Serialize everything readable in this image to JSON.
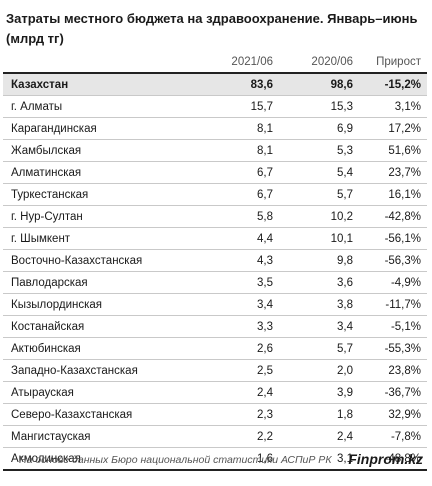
{
  "title": "Затраты местного бюджета на здравоохранение. Январь–июнь (млрд тг)",
  "table": {
    "headers": [
      "",
      "2021/06",
      "2020/06",
      "Прирост"
    ],
    "total": {
      "name": "Казахстан",
      "v2021": "83,6",
      "v2020": "98,6",
      "growth": "-15,2%"
    },
    "rows": [
      {
        "name": "г. Алматы",
        "v2021": "15,7",
        "v2020": "15,3",
        "growth": "3,1%"
      },
      {
        "name": "Карагандинская",
        "v2021": "8,1",
        "v2020": "6,9",
        "growth": "17,2%"
      },
      {
        "name": "Жамбылская",
        "v2021": "8,1",
        "v2020": "5,3",
        "growth": "51,6%"
      },
      {
        "name": "Алматинская",
        "v2021": "6,7",
        "v2020": "5,4",
        "growth": "23,7%"
      },
      {
        "name": "Туркестанская",
        "v2021": "6,7",
        "v2020": "5,7",
        "growth": "16,1%"
      },
      {
        "name": "г. Нур-Султан",
        "v2021": "5,8",
        "v2020": "10,2",
        "growth": "-42,8%"
      },
      {
        "name": "г. Шымкент",
        "v2021": "4,4",
        "v2020": "10,1",
        "growth": "-56,1%"
      },
      {
        "name": "Восточно-Казахстанская",
        "v2021": "4,3",
        "v2020": "9,8",
        "growth": "-56,3%"
      },
      {
        "name": "Павлодарская",
        "v2021": "3,5",
        "v2020": "3,6",
        "growth": "-4,9%"
      },
      {
        "name": "Кызылординская",
        "v2021": "3,4",
        "v2020": "3,8",
        "growth": "-11,7%"
      },
      {
        "name": "Костанайская",
        "v2021": "3,3",
        "v2020": "3,4",
        "growth": "-5,1%"
      },
      {
        "name": "Актюбинская",
        "v2021": "2,6",
        "v2020": "5,7",
        "growth": "-55,3%"
      },
      {
        "name": "Западно-Казахстанская",
        "v2021": "2,5",
        "v2020": "2,0",
        "growth": "23,8%"
      },
      {
        "name": "Атырауская",
        "v2021": "2,4",
        "v2020": "3,9",
        "growth": "-36,7%"
      },
      {
        "name": "Северо-Казахстанская",
        "v2021": "2,3",
        "v2020": "1,8",
        "growth": "32,9%"
      },
      {
        "name": "Мангистауская",
        "v2021": "2,2",
        "v2020": "2,4",
        "growth": "-7,8%"
      },
      {
        "name": "Акмолинская",
        "v2021": "1,6",
        "v2020": "3,1",
        "growth": "-48,8%"
      }
    ]
  },
  "footer": {
    "source": "На основе данных Бюро национальной статистики АСПиР РК",
    "brand": "Finprom.kz"
  },
  "colors": {
    "total_row_bg": "#e6e6e6",
    "rule": "#222222",
    "grid": "#c9c9c9"
  }
}
